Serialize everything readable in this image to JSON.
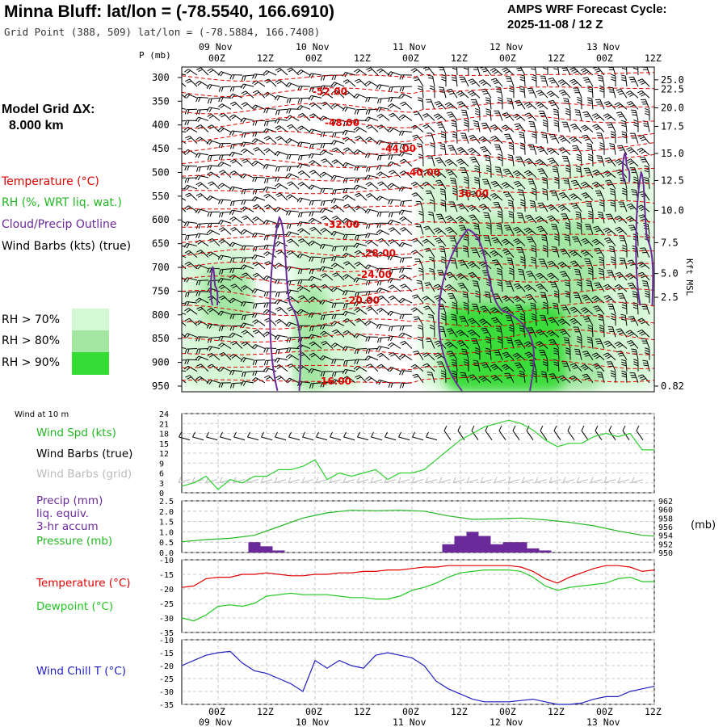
{
  "header": {
    "title": "Minna Bluff:  lat/lon = (-78.5540, 166.6910)",
    "grid_point": "Grid Point (388, 509) lat/lon = (-78.5884, 166.7408)",
    "cycle_label": "AMPS WRF Forecast Cycle:",
    "cycle_value": "2025-11-08 / 12  Z",
    "model_grid_label": "Model Grid ΔX:",
    "model_grid_value": "8.000 km"
  },
  "colors": {
    "temperature": "#e00000",
    "rh": "#22b822",
    "cloud": "#6a2a9a",
    "wind_speed": "#30d030",
    "grid_barbs": "#bbbbbb",
    "precip": "#6a2a9a",
    "pressure": "#22b822",
    "dewpoint": "#22c822",
    "wind_chill": "#2020c0",
    "rh70": "#d4f7d4",
    "rh80": "#a2e6a2",
    "rh90": "#36dc36"
  },
  "time_axis": {
    "tick_hours": [
      0,
      12,
      24,
      36,
      48,
      60,
      72,
      84,
      96,
      108
    ],
    "tick_labels": [
      "00Z",
      "12Z",
      "00Z",
      "12Z",
      "00Z",
      "12Z",
      "00Z",
      "12Z",
      "00Z",
      "12Z"
    ],
    "date_labels": [
      {
        "hour": 0,
        "text": "09 Nov"
      },
      {
        "hour": 24,
        "text": "10 Nov"
      },
      {
        "hour": 48,
        "text": "11 Nov"
      },
      {
        "hour": 72,
        "text": "12 Nov"
      },
      {
        "hour": 96,
        "text": "13 Nov"
      }
    ],
    "hour_min": -9,
    "hour_max": 108
  },
  "legend": {
    "temperature": "Temperature (°C)",
    "rh": "RH (%, WRT liq. wat.)",
    "cloud": "Cloud/Precip Outline",
    "wind_barbs": "Wind Barbs (kts) (true)",
    "rh70": "RH > 70%",
    "rh80": "RH > 80%",
    "rh90": "RH > 90%"
  },
  "chart_data": [
    {
      "type": "heatmap",
      "panel": "upper-air time-height cross section",
      "y_axis_label": "P (mb)",
      "y_ticks": [
        300,
        350,
        400,
        450,
        500,
        550,
        600,
        650,
        700,
        750,
        800,
        850,
        900,
        950
      ],
      "right_axis_label": "Kft MSL",
      "right_ticks": [
        {
          "p": 305,
          "text": "25.0"
        },
        {
          "p": 325,
          "text": "22.5"
        },
        {
          "p": 364,
          "text": "20.0"
        },
        {
          "p": 403,
          "text": "17.5"
        },
        {
          "p": 460,
          "text": "15.0"
        },
        {
          "p": 517,
          "text": "12.5"
        },
        {
          "p": 580,
          "text": "10.0"
        },
        {
          "p": 648,
          "text": "7.5"
        },
        {
          "p": 713,
          "text": "5.0"
        },
        {
          "p": 763,
          "text": "2.5"
        },
        {
          "p": 950,
          "text": "0.82"
        }
      ],
      "temperature_labels": [
        {
          "hour": 27,
          "p": 330,
          "text": "-52.00"
        },
        {
          "hour": 30,
          "p": 395,
          "text": "-48.00"
        },
        {
          "hour": 44,
          "p": 450,
          "text": "-44.00"
        },
        {
          "hour": 50,
          "p": 500,
          "text": "-40.00"
        },
        {
          "hour": 62,
          "p": 545,
          "text": "-36.00"
        },
        {
          "hour": 30,
          "p": 610,
          "text": "-32.00"
        },
        {
          "hour": 39,
          "p": 670,
          "text": "-28.00"
        },
        {
          "hour": 38,
          "p": 715,
          "text": "-24.00"
        },
        {
          "hour": 35,
          "p": 770,
          "text": "-20.00"
        },
        {
          "hour": 28,
          "p": 940,
          "text": "-16.00"
        }
      ],
      "rh_regions": [
        {
          "level": 70,
          "hours": [
            -9,
            9
          ],
          "p": [
            650,
            960
          ]
        },
        {
          "level": 80,
          "hours": [
            -4,
            8
          ],
          "p": [
            700,
            820
          ]
        },
        {
          "level": 70,
          "hours": [
            18,
            36
          ],
          "p": [
            620,
            960
          ]
        },
        {
          "level": 80,
          "hours": [
            19,
            27
          ],
          "p": [
            740,
            960
          ]
        },
        {
          "level": 70,
          "hours": [
            50,
            108
          ],
          "p": [
            480,
            960
          ]
        },
        {
          "level": 80,
          "hours": [
            58,
            95
          ],
          "p": [
            600,
            960
          ]
        },
        {
          "level": 90,
          "hours": [
            56,
            86
          ],
          "p": [
            780,
            960
          ]
        }
      ],
      "cloud_outlines": [
        {
          "hours": [
            -2,
            0
          ],
          "p": [
            700,
            780
          ]
        },
        {
          "hours": [
            12,
            21
          ],
          "p": [
            595,
            960
          ]
        },
        {
          "hours": [
            52,
            80
          ],
          "p": [
            620,
            960
          ]
        },
        {
          "hours": [
            100,
            102
          ],
          "p": [
            460,
            520
          ]
        },
        {
          "hours": [
            103,
            108
          ],
          "p": [
            500,
            780
          ]
        }
      ]
    },
    {
      "type": "line",
      "panel": "10 m wind",
      "title": "Wind at 10 m",
      "series": [
        {
          "name": "Wind Spd (kts)",
          "color": "#30d030"
        }
      ],
      "extra_legend": [
        "Wind Barbs (true)",
        "Wind Barbs (grid)"
      ],
      "y_ticks": [
        0,
        3,
        6,
        9,
        12,
        15,
        18,
        21,
        24
      ],
      "ylim": [
        0,
        24
      ],
      "x": [
        -9,
        -6,
        -3,
        0,
        3,
        6,
        9,
        12,
        15,
        18,
        21,
        24,
        27,
        30,
        33,
        36,
        39,
        42,
        45,
        48,
        51,
        54,
        57,
        60,
        63,
        66,
        69,
        72,
        75,
        78,
        81,
        84,
        87,
        90,
        93,
        96,
        99,
        102,
        105,
        108
      ],
      "values": [
        2,
        3,
        5,
        1,
        4,
        3,
        5,
        5,
        7,
        7,
        8,
        10,
        4,
        6,
        5,
        6,
        7,
        4,
        6,
        6,
        7,
        10,
        13,
        16,
        18,
        20,
        21,
        22,
        21,
        19,
        16,
        14,
        15,
        15,
        17,
        18,
        17,
        18,
        13,
        13
      ]
    },
    {
      "type": "bar",
      "panel": "precip and pressure",
      "series": [
        {
          "name": "Precip (mm)",
          "color": "#6a2a9a"
        },
        {
          "name": "Pressure (mb)",
          "color": "#22b822"
        }
      ],
      "legend_lines": [
        "Precip (mm)",
        "liq. equiv.",
        "3-hr accum",
        "Pressure (mb)"
      ],
      "y_ticks_left": [
        "0.0",
        "0.5",
        "1.0",
        "1.5",
        "2.0",
        "2.5"
      ],
      "y_ticks_right": [
        "962",
        "960",
        "958",
        "956",
        "954",
        "952",
        "950"
      ],
      "right_unit": "(mb)",
      "ylim_left": [
        0,
        2.5
      ],
      "ylim_right": [
        950,
        962
      ],
      "precip": [
        {
          "hour": 9,
          "value": 0.5
        },
        {
          "hour": 12,
          "value": 0.3
        },
        {
          "hour": 15,
          "value": 0.1
        },
        {
          "hour": 57,
          "value": 0.4
        },
        {
          "hour": 60,
          "value": 0.8
        },
        {
          "hour": 63,
          "value": 1.0
        },
        {
          "hour": 66,
          "value": 0.8
        },
        {
          "hour": 69,
          "value": 0.4
        },
        {
          "hour": 72,
          "value": 0.5
        },
        {
          "hour": 75,
          "value": 0.5
        },
        {
          "hour": 78,
          "value": 0.2
        },
        {
          "hour": 81,
          "value": 0.1
        }
      ],
      "pressure_x": [
        -9,
        -3,
        3,
        9,
        15,
        21,
        27,
        33,
        39,
        45,
        51,
        57,
        63,
        69,
        75,
        81,
        87,
        93,
        99,
        105,
        108
      ],
      "pressure": [
        952.5,
        953.0,
        953.3,
        954.0,
        956.0,
        958.0,
        959.2,
        959.8,
        959.7,
        959.8,
        959.6,
        958.5,
        957.7,
        957.8,
        958.0,
        957.6,
        957.0,
        956.2,
        955.0,
        954.0,
        953.8
      ]
    },
    {
      "type": "line",
      "panel": "temperature and dewpoint",
      "series": [
        {
          "name": "Temperature (°C)",
          "color": "#e00000"
        },
        {
          "name": "Dewpoint (°C)",
          "color": "#22c822"
        }
      ],
      "y_ticks": [
        -35,
        -30,
        -25,
        -20,
        -15,
        -10
      ],
      "ylim": [
        -35,
        -10
      ],
      "x": [
        -9,
        -6,
        -3,
        0,
        3,
        6,
        9,
        12,
        15,
        18,
        21,
        24,
        27,
        30,
        33,
        36,
        39,
        42,
        45,
        48,
        51,
        54,
        57,
        60,
        63,
        66,
        69,
        72,
        75,
        78,
        81,
        84,
        87,
        90,
        93,
        96,
        99,
        102,
        105,
        108
      ],
      "temperature": [
        -19.5,
        -19,
        -16.5,
        -16,
        -16,
        -15,
        -15,
        -14.5,
        -15,
        -15.5,
        -15.5,
        -15,
        -15,
        -14.5,
        -14.5,
        -14,
        -14,
        -13.5,
        -13.5,
        -13,
        -12.5,
        -12.5,
        -12,
        -12,
        -12,
        -12,
        -12,
        -12,
        -12.5,
        -14,
        -16.5,
        -18,
        -16,
        -14.5,
        -13,
        -12,
        -12,
        -12.5,
        -14,
        -13.5
      ],
      "dewpoint": [
        -30,
        -31,
        -29,
        -26,
        -25.5,
        -26,
        -25,
        -22.5,
        -22,
        -21.5,
        -22,
        -22,
        -22,
        -22.5,
        -23,
        -23,
        -23.5,
        -23.5,
        -22.5,
        -20.5,
        -19.5,
        -18,
        -16,
        -14.5,
        -14,
        -13.5,
        -13.5,
        -13.5,
        -14,
        -16,
        -19,
        -20.5,
        -19.5,
        -19,
        -18.5,
        -18,
        -16.5,
        -16,
        -17.5,
        -17.5
      ]
    },
    {
      "type": "line",
      "panel": "wind chill",
      "series": [
        {
          "name": "Wind Chill T (°C)",
          "color": "#2020c0"
        }
      ],
      "y_ticks": [
        -35,
        -30,
        -25,
        -20,
        -15,
        -10
      ],
      "ylim": [
        -35,
        -10
      ],
      "x": [
        -9,
        -6,
        -3,
        0,
        3,
        6,
        9,
        12,
        15,
        18,
        21,
        24,
        27,
        30,
        33,
        36,
        39,
        42,
        45,
        48,
        51,
        54,
        57,
        60,
        63,
        66,
        69,
        72,
        75,
        78,
        81,
        84,
        87,
        90,
        93,
        96,
        99,
        102,
        105,
        108
      ],
      "values": [
        -20,
        -18,
        -16,
        -15,
        -14.5,
        -19,
        -22,
        -23,
        -25,
        -27,
        -30,
        -18,
        -21,
        -18,
        -20,
        -21,
        -16,
        -15,
        -16,
        -17,
        -20,
        -26,
        -29,
        -31,
        -33,
        -34,
        -34,
        -34,
        -33.5,
        -33,
        -34,
        -35,
        -35,
        -34.5,
        -33,
        -32,
        -32,
        -30,
        -29,
        -28
      ]
    }
  ]
}
